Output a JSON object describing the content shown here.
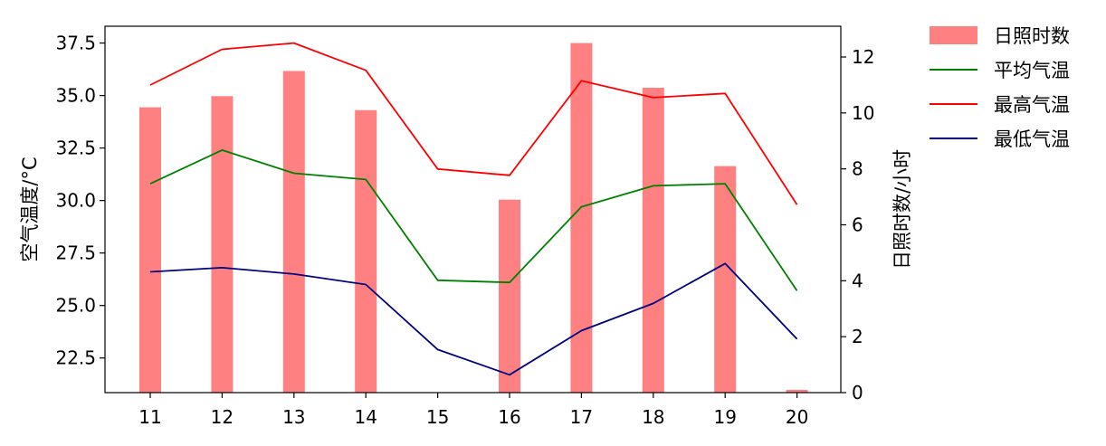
{
  "chart_data": {
    "type": "bar+line",
    "x": [
      "11",
      "12",
      "13",
      "14",
      "15",
      "16",
      "17",
      "18",
      "19",
      "20"
    ],
    "bars": {
      "name": "日照时数",
      "axis": "right",
      "color": "#ff8080",
      "values": [
        10.2,
        10.6,
        11.5,
        10.1,
        0,
        6.9,
        12.5,
        10.9,
        8.1,
        0.1
      ]
    },
    "series": [
      {
        "name": "平均气温",
        "axis": "left",
        "color": "#008000",
        "values": [
          30.8,
          32.4,
          31.3,
          31.0,
          26.2,
          26.1,
          29.7,
          30.7,
          30.8,
          25.7
        ]
      },
      {
        "name": "最高气温",
        "axis": "left",
        "color": "#ff0000",
        "values": [
          35.5,
          37.2,
          37.5,
          36.2,
          31.5,
          31.2,
          35.7,
          34.9,
          35.1,
          29.8
        ]
      },
      {
        "name": "最低气温",
        "axis": "left",
        "color": "#000080",
        "values": [
          26.6,
          26.8,
          26.5,
          26.0,
          22.9,
          21.7,
          23.8,
          25.1,
          27.0,
          23.4
        ]
      }
    ],
    "ylabel": "空气温度/°C",
    "y2label": "日照时数/小时",
    "ylim": [
      20.85,
      38.3
    ],
    "y2lim": [
      0,
      13.1
    ],
    "yticks": [
      "22.5",
      "25.0",
      "27.5",
      "30.0",
      "32.5",
      "35.0",
      "37.5"
    ],
    "y2ticks": [
      "0",
      "2",
      "4",
      "6",
      "8",
      "10",
      "12"
    ],
    "grid": false,
    "legend_position": "outside top-right"
  }
}
